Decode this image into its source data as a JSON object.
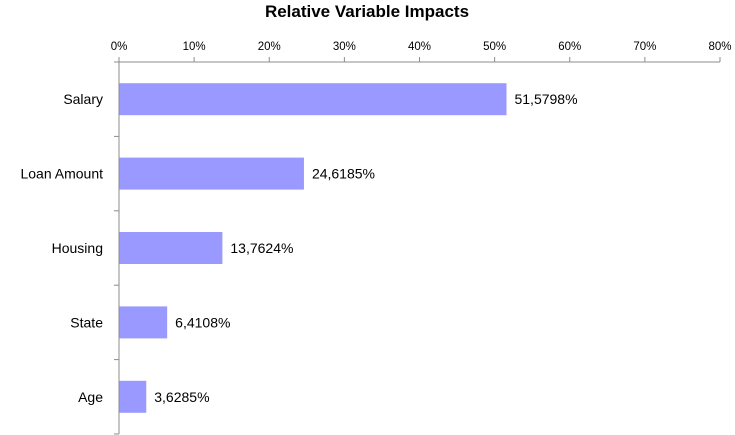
{
  "chart_data": {
    "type": "bar",
    "orientation": "horizontal",
    "title": "Relative Variable Impacts",
    "xlabel": "",
    "ylabel": "",
    "xlim": [
      0,
      80
    ],
    "x_axis_position": "top",
    "x_ticks": [
      "0%",
      "10%",
      "20%",
      "30%",
      "40%",
      "50%",
      "60%",
      "70%",
      "80%"
    ],
    "categories": [
      "Salary",
      "Loan Amount",
      "Housing",
      "State",
      "Age"
    ],
    "values": [
      51.5798,
      24.6185,
      13.7624,
      6.4108,
      3.6285
    ],
    "data_labels": [
      "51,5798%",
      "24,6185%",
      "13,7624%",
      "6,4108%",
      "3,6285%"
    ],
    "bar_color": "#9999ff",
    "grid": false,
    "legend": "none"
  }
}
